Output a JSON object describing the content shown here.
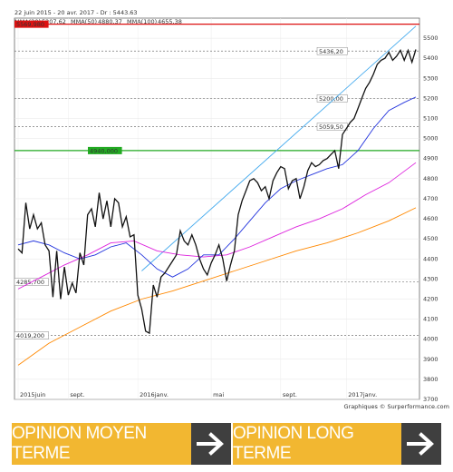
{
  "header": {
    "text": "22 juin 2015 - 20 avr. 2017 - Dr : 5443.63",
    "legend": [
      {
        "label": "MMA(20)",
        "value": "5207,62",
        "color": "#2233dd"
      },
      {
        "label": "MMA(50)",
        "value": "4880,37",
        "color": "#dd22dd"
      },
      {
        "label": "MMA(100)",
        "value": "4655,38",
        "color": "#ff8800"
      }
    ]
  },
  "credit": "Graphiques © Surperformance.com",
  "banners": {
    "left": "OPINION MOYEN TERME",
    "right": "OPINION LONG TERME"
  },
  "colors": {
    "banner_bg": "#f2b731",
    "arrow_bg": "#3f3f3f"
  },
  "chart_data": {
    "type": "line",
    "ylim": [
      3700,
      5600
    ],
    "yticks": [
      3700,
      3800,
      3900,
      4000,
      4100,
      4200,
      4300,
      4400,
      4500,
      4600,
      4700,
      4800,
      4900,
      5000,
      5100,
      5200,
      5300,
      5400,
      5500
    ],
    "xticks": [
      "2015juin",
      "sept.",
      "2016janv.",
      "mai",
      "sept.",
      "2017janv."
    ],
    "levels": [
      {
        "label": "5569,980",
        "value": 5570,
        "color": "#dd1111",
        "style": "solid"
      },
      {
        "label": "5436,20",
        "value": 5436,
        "color": "#777777",
        "style": "dashed"
      },
      {
        "label": "5200,00",
        "value": 5200,
        "color": "#777777",
        "style": "dashed"
      },
      {
        "label": "5059,50",
        "value": 5059,
        "color": "#777777",
        "style": "dashed"
      },
      {
        "label": "4940,000",
        "value": 4940,
        "color": "#22aa22",
        "style": "solid"
      },
      {
        "label": "4285,700",
        "value": 4285,
        "color": "#777777",
        "style": "dashed"
      },
      {
        "label": "4019,200",
        "value": 4019,
        "color": "#777777",
        "style": "dashed"
      }
    ],
    "series": [
      {
        "name": "Dr",
        "color": "#111111",
        "x": [
          0,
          1,
          2,
          3,
          4,
          5,
          6,
          7,
          8,
          9,
          10,
          11,
          12,
          13,
          14,
          15,
          16,
          17,
          18,
          19,
          20,
          21,
          22,
          23,
          24,
          25,
          26,
          27,
          28,
          29,
          30,
          31,
          32,
          33,
          34,
          35,
          36,
          37,
          38,
          39,
          40,
          41,
          42,
          43,
          44,
          45,
          46,
          47,
          48,
          49,
          50,
          51,
          52,
          53,
          54,
          55,
          56,
          57,
          58,
          59,
          60,
          61,
          62,
          63,
          64,
          65,
          66,
          67,
          68,
          69,
          70,
          71,
          72,
          73,
          74,
          75,
          76,
          77,
          78,
          79,
          80,
          81,
          82,
          83,
          84,
          85,
          86,
          87,
          88,
          89,
          90,
          91,
          92,
          93,
          94,
          95,
          96,
          97,
          98,
          99,
          100,
          101,
          102,
          103
        ],
        "y": [
          4450,
          4430,
          4680,
          4550,
          4620,
          4550,
          4580,
          4470,
          4440,
          4210,
          4440,
          4200,
          4360,
          4220,
          4280,
          4230,
          4430,
          4370,
          4620,
          4650,
          4560,
          4730,
          4600,
          4690,
          4560,
          4700,
          4680,
          4560,
          4610,
          4510,
          4520,
          4220,
          4150,
          4040,
          4030,
          4270,
          4210,
          4310,
          4330,
          4360,
          4390,
          4420,
          4540,
          4490,
          4470,
          4520,
          4470,
          4400,
          4350,
          4320,
          4380,
          4420,
          4470,
          4400,
          4290,
          4370,
          4440,
          4620,
          4690,
          4740,
          4790,
          4800,
          4780,
          4740,
          4760,
          4700,
          4790,
          4830,
          4860,
          4850,
          4750,
          4790,
          4800,
          4700,
          4760,
          4840,
          4880,
          4860,
          4870,
          4890,
          4900,
          4920,
          4940,
          4850,
          5020,
          5050,
          5080,
          5100,
          5150,
          5200,
          5250,
          5280,
          5320,
          5370,
          5390,
          5400,
          5430,
          5390,
          5410,
          5440,
          5390,
          5440,
          5380,
          5444
        ]
      },
      {
        "name": "MMA(20)",
        "color": "#2233dd",
        "x": [
          0,
          4,
          8,
          12,
          16,
          20,
          24,
          28,
          32,
          36,
          40,
          44,
          48,
          52,
          56,
          60,
          64,
          68,
          72,
          76,
          80,
          84,
          88,
          92,
          96,
          100,
          103
        ],
        "y": [
          4470,
          4490,
          4470,
          4430,
          4400,
          4420,
          4460,
          4480,
          4420,
          4350,
          4310,
          4350,
          4420,
          4420,
          4500,
          4590,
          4680,
          4750,
          4790,
          4820,
          4850,
          4870,
          4940,
          5050,
          5140,
          5180,
          5207
        ]
      },
      {
        "name": "MMA(50)",
        "color": "#dd22dd",
        "x": [
          0,
          6,
          12,
          18,
          24,
          30,
          36,
          42,
          48,
          54,
          60,
          66,
          72,
          78,
          84,
          90,
          96,
          103
        ],
        "y": [
          4250,
          4310,
          4370,
          4420,
          4480,
          4490,
          4440,
          4420,
          4410,
          4420,
          4460,
          4510,
          4560,
          4600,
          4650,
          4720,
          4780,
          4880
        ]
      },
      {
        "name": "MMA(100)",
        "color": "#ff8800",
        "x": [
          0,
          8,
          16,
          24,
          32,
          40,
          48,
          56,
          64,
          72,
          80,
          88,
          96,
          103
        ],
        "y": [
          3870,
          3980,
          4060,
          4140,
          4200,
          4240,
          4290,
          4340,
          4390,
          4440,
          4480,
          4530,
          4590,
          4655
        ]
      },
      {
        "name": "trend",
        "color": "#44aaee",
        "x": [
          32,
          103
        ],
        "y": [
          4340,
          5560
        ]
      }
    ]
  }
}
